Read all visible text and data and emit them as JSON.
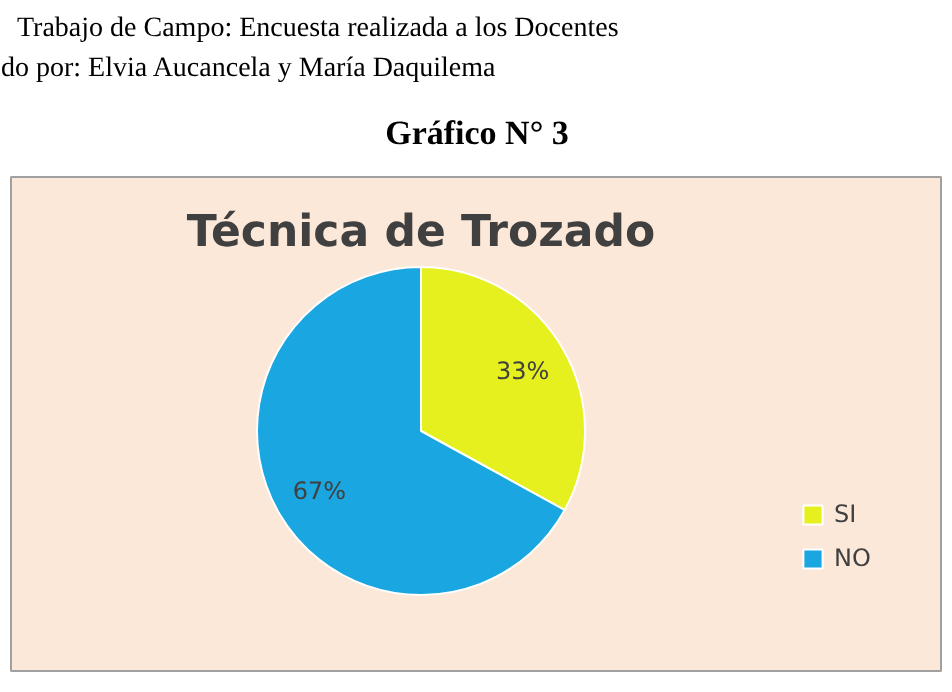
{
  "chart_data": {
    "type": "pie",
    "title": "Técnica de Trozado",
    "annotations": [
      "Trabajo de Campo: Encuesta realizada a los Docentes",
      "do por: Elvia Aucancela y María Daquilema",
      "Gráfico N° 3"
    ],
    "categories": [
      "SI",
      "NO"
    ],
    "values": [
      33,
      67
    ],
    "colors": [
      "#e6f01e",
      "#1aa6e0"
    ],
    "value_labels": [
      "33%",
      "67%"
    ],
    "legend": "right"
  }
}
